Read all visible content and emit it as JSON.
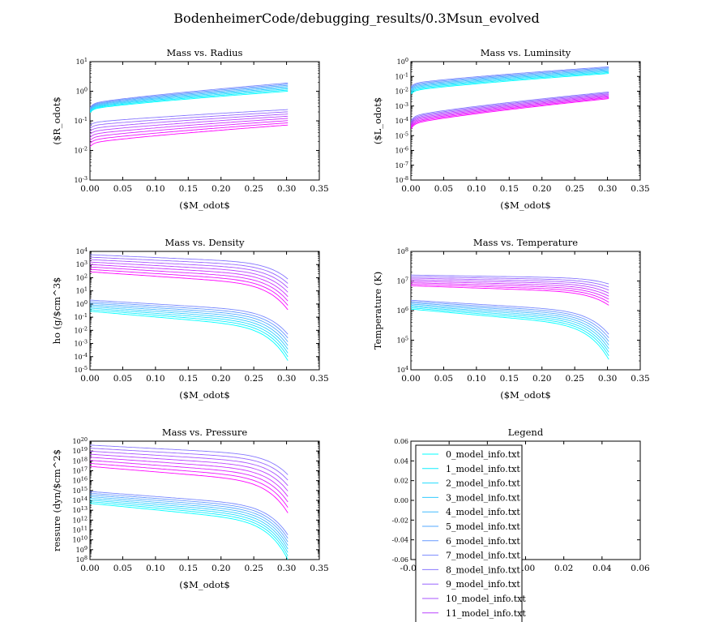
{
  "figure_title": "BodenheimerCode/debugging_results/0.3Msun_evolved",
  "chart_data": [
    {
      "type": "line",
      "title": "Mass vs. Radius",
      "xlabel": "($M_odot$",
      "ylabel": "($R_odot$",
      "xlim": [
        0,
        0.35
      ],
      "yscale": "log",
      "ylim_exp": [
        -3,
        1
      ],
      "xticks": [
        "0.00",
        "0.05",
        "0.10",
        "0.15",
        "0.20",
        "0.25",
        "0.30",
        "0.35"
      ],
      "yticks": [
        "10^-3",
        "10^-2",
        "10^-1",
        "10^0",
        "10^1"
      ],
      "series_group": "radius"
    },
    {
      "type": "line",
      "title": "Mass vs. Luminsity",
      "xlabel": "($M_odot$",
      "ylabel": "($L_odot$",
      "xlim": [
        0,
        0.35
      ],
      "yscale": "log",
      "ylim_exp": [
        -8,
        0
      ],
      "xticks": [
        "0.00",
        "0.05",
        "0.10",
        "0.15",
        "0.20",
        "0.25",
        "0.30",
        "0.35"
      ],
      "yticks": [
        "10^-8",
        "10^-7",
        "10^-6",
        "10^-5",
        "10^-4",
        "10^-3",
        "10^-2",
        "10^-1",
        "10^0"
      ],
      "series_group": "luminosity"
    },
    {
      "type": "line",
      "title": "Mass vs. Density",
      "xlabel": "($M_odot$",
      "ylabel": "ho (g/$cm^3$",
      "xlim": [
        0,
        0.35
      ],
      "yscale": "log",
      "ylim_exp": [
        -5,
        4
      ],
      "xticks": [
        "0.00",
        "0.05",
        "0.10",
        "0.15",
        "0.20",
        "0.25",
        "0.30",
        "0.35"
      ],
      "yticks": [
        "10^-5",
        "10^-4",
        "10^-3",
        "10^-2",
        "10^-1",
        "10^0",
        "10^1",
        "10^2",
        "10^3",
        "10^4"
      ],
      "series_group": "density"
    },
    {
      "type": "line",
      "title": "Mass vs. Temperature",
      "xlabel": "($M_odot$",
      "ylabel": "Temperature (K)",
      "xlim": [
        0,
        0.35
      ],
      "yscale": "log",
      "ylim_exp": [
        4,
        8
      ],
      "xticks": [
        "0.00",
        "0.05",
        "0.10",
        "0.15",
        "0.20",
        "0.25",
        "0.30",
        "0.35"
      ],
      "yticks": [
        "10^4",
        "10^5",
        "10^6",
        "10^7",
        "10^8"
      ],
      "series_group": "temperature"
    },
    {
      "type": "line",
      "title": "Mass vs. Pressure",
      "xlabel": "($M_odot$",
      "ylabel": "ressure (dyn/$cm^2$",
      "xlim": [
        0,
        0.35
      ],
      "yscale": "log",
      "ylim_exp": [
        8,
        20
      ],
      "xticks": [
        "0.00",
        "0.05",
        "0.10",
        "0.15",
        "0.20",
        "0.25",
        "0.30",
        "0.35"
      ],
      "yticks": [
        "10^8",
        "10^9",
        "10^10",
        "10^11",
        "10^12",
        "10^13",
        "10^14",
        "10^15",
        "10^16",
        "10^17",
        "10^18",
        "10^19",
        "10^20"
      ],
      "series_group": "pressure"
    },
    {
      "type": "line",
      "title": "Legend",
      "xlim": [
        -0.06,
        0.06
      ],
      "ylim": [
        -0.06,
        0.06
      ],
      "xticks": [
        "-0.06",
        "-0.04",
        "-0.02",
        "0.00",
        "0.02",
        "0.04",
        "0.06"
      ],
      "yticks": [
        "-0.06",
        "-0.04",
        "-0.02",
        "0.00",
        "0.02",
        "0.04",
        "0.06"
      ],
      "legend_entries": [
        "0_model_info.txt",
        "1_model_info.txt",
        "2_model_info.txt",
        "3_model_info.txt",
        "4_model_info.txt",
        "5_model_info.txt",
        "6_model_info.txt",
        "7_model_info.txt",
        "8_model_info.txt",
        "9_model_info.txt",
        "10_model_info.txt",
        "11_model_info.txt"
      ]
    }
  ],
  "series_colors": [
    "#00ffff",
    "#11eeff",
    "#22ddff",
    "#33ccff",
    "#44bbff",
    "#55aaff",
    "#6699ff",
    "#7788ff",
    "#8877ff",
    "#9966ff",
    "#aa55ff",
    "#bb44ff",
    "#cc33ff",
    "#dd22ff",
    "#ee11ff",
    "#ff00ff"
  ],
  "series_profiles": {
    "radius": {
      "ms_start": [
        -0.72,
        -0.55
      ],
      "ms_end": [
        0.0,
        0.28
      ],
      "ev_start": [
        -1.95,
        -1.15
      ],
      "ev_end": [
        -1.2,
        -0.62
      ],
      "shape": "rise"
    },
    "luminosity": {
      "ms_start": [
        -2.2,
        -1.7
      ],
      "ms_end": [
        -0.8,
        -0.35
      ],
      "ev_start": [
        -4.6,
        -4.0
      ],
      "ev_end": [
        -2.55,
        -2.05
      ],
      "shape": "rise"
    },
    "density": {
      "ms_start": [
        -0.55,
        0.3
      ],
      "ms_end": [
        -4.3,
        -2.3
      ],
      "ev_start": [
        2.3,
        3.75
      ],
      "ev_end": [
        -0.7,
        1.9
      ],
      "shape": "fall"
    },
    "temperature": {
      "ms_start": [
        6.05,
        6.35
      ],
      "ms_end": [
        4.35,
        5.2
      ],
      "ev_start": [
        6.8,
        7.2
      ],
      "ev_end": [
        6.1,
        6.9
      ],
      "shape": "fall"
    },
    "pressure": {
      "ms_start": [
        13.7,
        14.9
      ],
      "ms_end": [
        8.0,
        10.5
      ],
      "ev_start": [
        17.2,
        19.6
      ],
      "ev_end": [
        12.3,
        16.6
      ],
      "shape": "fall"
    }
  }
}
